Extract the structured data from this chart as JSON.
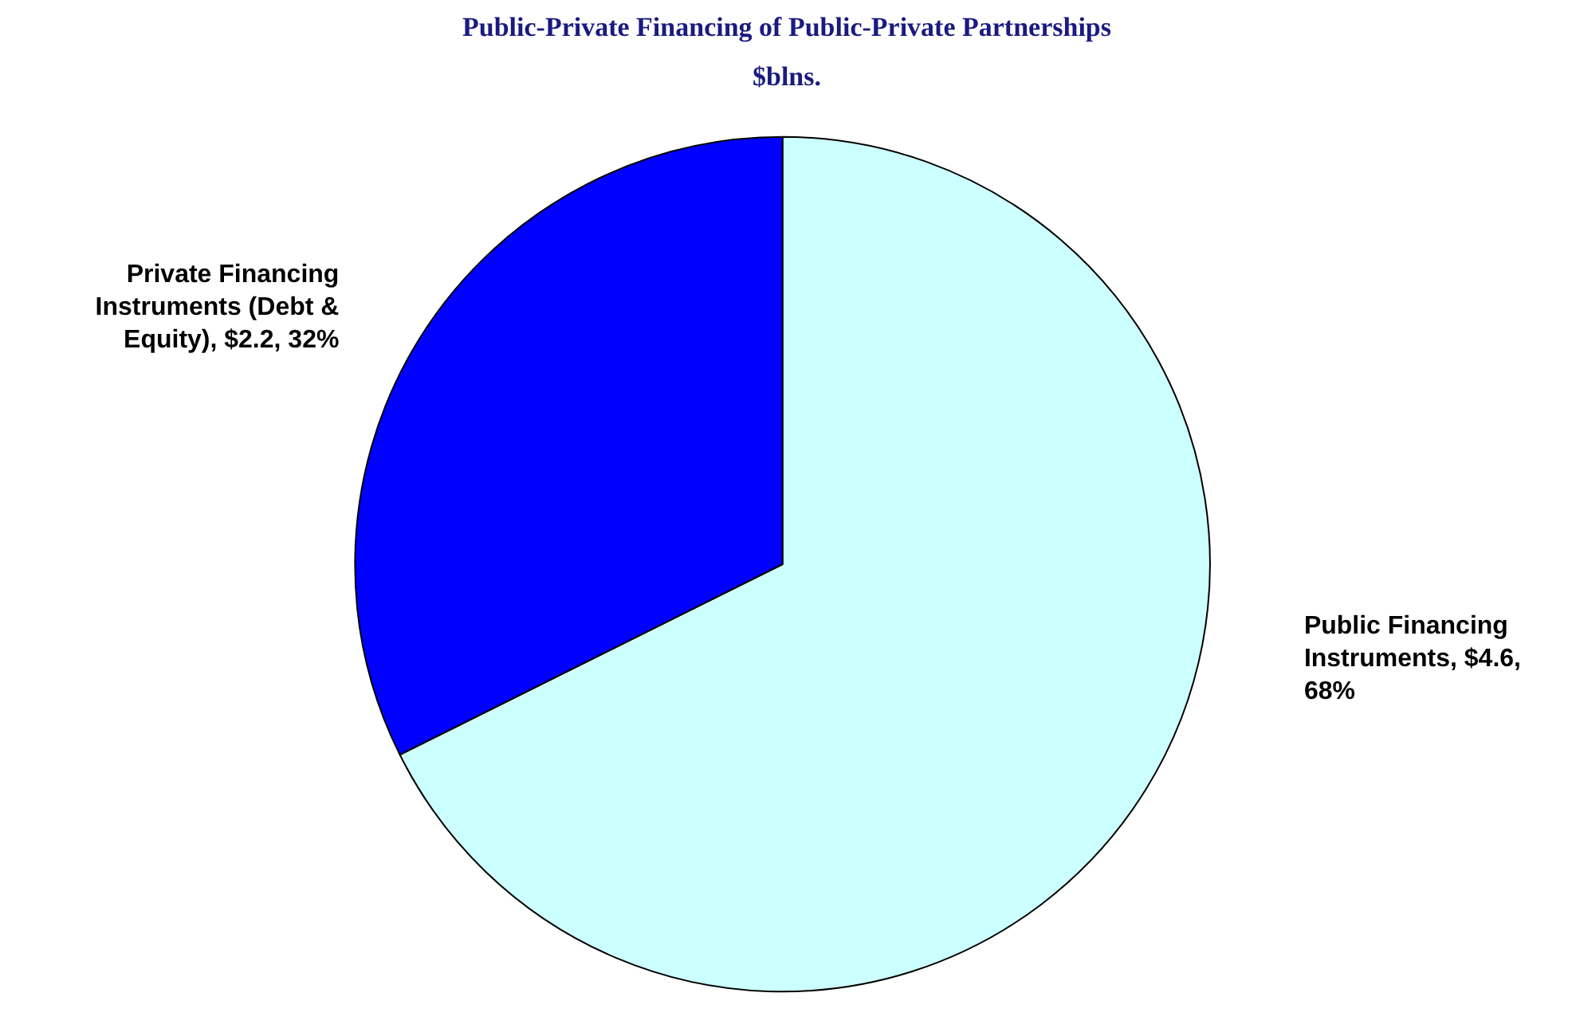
{
  "chart_data": {
    "type": "pie",
    "title": "Public-Private Financing of Public-Private Partnerships",
    "subtitle": "$blns.",
    "categories": [
      "Public Financing Instruments",
      "Private Financing Instruments (Debt & Equity)"
    ],
    "values": [
      4.6,
      2.2
    ],
    "colors": [
      "#ccffff",
      "#0000ff"
    ],
    "value_labels": [
      "$4.6, 68%",
      "$2.2, 32%"
    ],
    "legend": false
  }
}
